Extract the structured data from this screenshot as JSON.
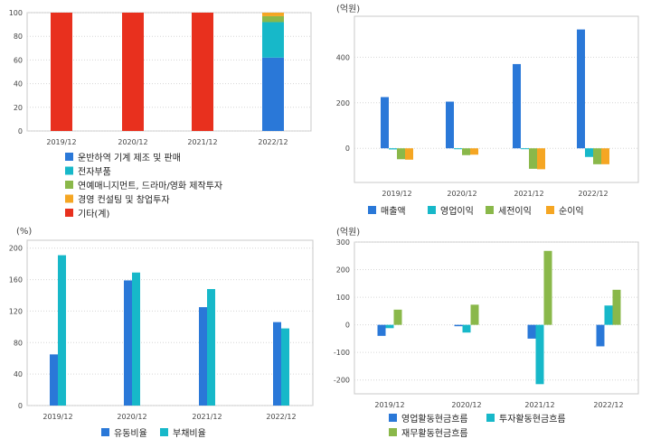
{
  "colors": {
    "blue": "#2a78d8",
    "cyan": "#17b8c9",
    "green": "#8ab84a",
    "orange": "#f5a623",
    "red": "#e8301e",
    "plot_border": "#c8c8c8",
    "grid": "#d6d6d6",
    "axis_text": "#444444"
  },
  "chart_data": [
    {
      "id": "composition",
      "type": "bar",
      "stacked": true,
      "categories": [
        "2019/12",
        "2020/12",
        "2021/12",
        "2022/12"
      ],
      "yticks": [
        0,
        20,
        40,
        60,
        80,
        100
      ],
      "ylim": [
        0,
        100
      ],
      "grid": true,
      "legend_position": "bottom",
      "series": [
        {
          "name": "운반하역 기계 제조 및 판매",
          "color": "#2a78d8",
          "values": [
            0,
            0,
            0,
            62
          ]
        },
        {
          "name": "전자부품",
          "color": "#17b8c9",
          "values": [
            0,
            0,
            0,
            30
          ]
        },
        {
          "name": "연예매니지먼트, 드라마/영화 제작투자",
          "color": "#8ab84a",
          "values": [
            0,
            0,
            0,
            5
          ]
        },
        {
          "name": "경영 컨설팅 및 창업투자",
          "color": "#f5a623",
          "values": [
            0,
            0,
            0,
            3
          ]
        },
        {
          "name": "기타(계)",
          "color": "#e8301e",
          "values": [
            100,
            100,
            100,
            0
          ]
        }
      ]
    },
    {
      "id": "income",
      "type": "bar",
      "unit": "(억원)",
      "categories": [
        "2019/12",
        "2020/12",
        "2021/12",
        "2022/12"
      ],
      "yticks": [
        0,
        200,
        400
      ],
      "ylim": [
        -150,
        580
      ],
      "grid": true,
      "legend_position": "bottom",
      "series": [
        {
          "name": "매출액",
          "color": "#2a78d8",
          "values": [
            225,
            205,
            370,
            522
          ]
        },
        {
          "name": "영업이익",
          "color": "#17b8c9",
          "values": [
            -5,
            -3,
            -2,
            -38
          ]
        },
        {
          "name": "세전이익",
          "color": "#8ab84a",
          "values": [
            -48,
            -30,
            -90,
            -70
          ]
        },
        {
          "name": "순이익",
          "color": "#f5a623",
          "values": [
            -50,
            -28,
            -92,
            -70
          ]
        }
      ]
    },
    {
      "id": "ratios",
      "type": "bar",
      "unit": "(%)",
      "categories": [
        "2019/12",
        "2020/12",
        "2021/12",
        "2022/12"
      ],
      "yticks": [
        0,
        40,
        80,
        120,
        160,
        200
      ],
      "ylim": [
        0,
        210
      ],
      "grid": true,
      "legend_position": "bottom",
      "series": [
        {
          "name": "유동비율",
          "color": "#2a78d8",
          "values": [
            65,
            159,
            125,
            106
          ]
        },
        {
          "name": "부채비율",
          "color": "#17b8c9",
          "values": [
            191,
            169,
            148,
            98
          ]
        }
      ]
    },
    {
      "id": "cashflow",
      "type": "bar",
      "unit": "(억원)",
      "categories": [
        "2019/12",
        "2020/12",
        "2021/12",
        "2022/12"
      ],
      "yticks": [
        -200,
        -100,
        0,
        100,
        200,
        300
      ],
      "ylim": [
        -250,
        300
      ],
      "grid": true,
      "legend_position": "bottom",
      "series": [
        {
          "name": "영업활동현금흐름",
          "color": "#2a78d8",
          "values": [
            -40,
            -5,
            -50,
            -78
          ]
        },
        {
          "name": "투자활동현금흐름",
          "color": "#17b8c9",
          "values": [
            -12,
            -28,
            -215,
            70
          ]
        },
        {
          "name": "재무활동현금흐름",
          "color": "#8ab84a",
          "values": [
            55,
            73,
            268,
            127
          ]
        }
      ]
    }
  ]
}
